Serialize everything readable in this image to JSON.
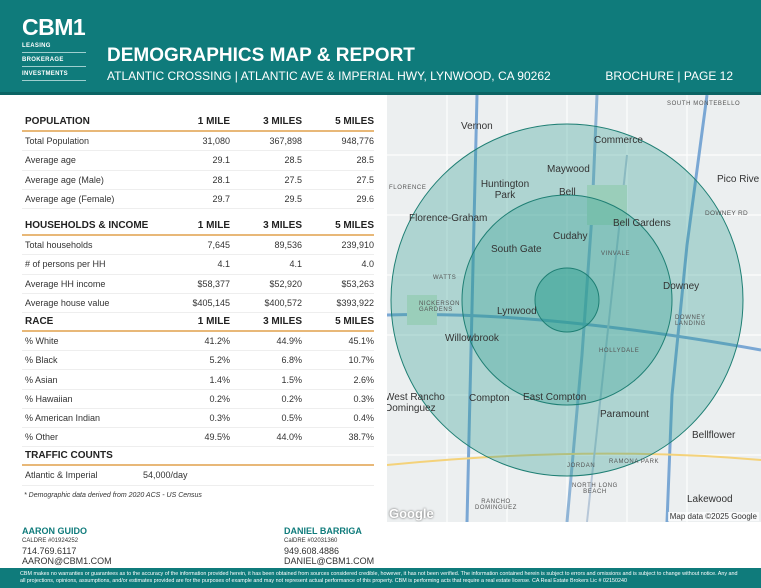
{
  "header": {
    "logo": "CBM1",
    "logo_lines": [
      "LEASING",
      "BROKERAGE",
      "INVESTMENTS"
    ],
    "title": "DEMOGRAPHICS MAP & REPORT",
    "subtitle": "ATLANTIC CROSSING | ATLANTIC AVE & IMPERIAL HWY, LYNWOOD, CA 90262",
    "page": "BROCHURE | PAGE 12"
  },
  "sections": [
    {
      "title": "POPULATION",
      "cols": [
        "1 MILE",
        "3 MILES",
        "5 MILES"
      ],
      "rows": [
        [
          "Total Population",
          "31,080",
          "367,898",
          "948,776"
        ],
        [
          "Average age",
          "29.1",
          "28.5",
          "28.5"
        ],
        [
          "Average age (Male)",
          "28.1",
          "27.5",
          "27.5"
        ],
        [
          "Average age (Female)",
          "29.7",
          "29.5",
          "29.6"
        ]
      ]
    },
    {
      "title": "HOUSEHOLDS & INCOME",
      "cols": [
        "1 MILE",
        "3 MILES",
        "5 MILES"
      ],
      "rows": [
        [
          "Total households",
          "7,645",
          "89,536",
          "239,910"
        ],
        [
          "# of persons per HH",
          "4.1",
          "4.1",
          "4.0"
        ],
        [
          "Average HH income",
          "$58,377",
          "$52,920",
          "$53,263"
        ],
        [
          "Average house value",
          "$405,145",
          "$400,572",
          "$393,922"
        ]
      ]
    },
    {
      "title": "RACE",
      "cols": [
        "1 MILE",
        "3 MILES",
        "5 MILES"
      ],
      "rows": [
        [
          "% White",
          "41.2%",
          "44.9%",
          "45.1%"
        ],
        [
          "% Black",
          "5.2%",
          "6.8%",
          "10.7%"
        ],
        [
          "% Asian",
          "1.4%",
          "1.5%",
          "2.6%"
        ],
        [
          "% Hawaiian",
          "0.2%",
          "0.2%",
          "0.3%"
        ],
        [
          "% American Indian",
          "0.3%",
          "0.5%",
          "0.4%"
        ],
        [
          "% Other",
          "49.5%",
          "44.0%",
          "38.7%"
        ]
      ]
    }
  ],
  "traffic": {
    "title": "TRAFFIC COUNTS",
    "label": "Atlantic & Imperial",
    "value": "54,000/day"
  },
  "note": "* Demographic data derived from 2020 ACS - US Census",
  "map": {
    "places": [
      "Vernon",
      "Commerce",
      "Maywood",
      "Pico Rive",
      "Huntington Park",
      "Bell",
      "Florence-Graham",
      "Bell Gardens",
      "Cudahy",
      "South Gate",
      "Downey",
      "Lynwood",
      "Willowbrook",
      "West Rancho Dominguez",
      "Compton",
      "East Compton",
      "Paramount",
      "Bellflower",
      "Lakewood"
    ],
    "small": [
      "SOUTH MONTEBELLO",
      "FLORENCE",
      "DOWNEY RD",
      "VINVALE",
      "WATTS",
      "NICKERSON GARDENS",
      "DOWNEY LANDING",
      "HOLLYDALE",
      "JORDAN",
      "RAMONA PARK",
      "NORTH LONG BEACH",
      "RANCHO DOMINGUEZ"
    ],
    "google": "Google",
    "attribution": "Map data ©2025 Google",
    "circle_color": "#2a9d8f"
  },
  "contacts": [
    {
      "name": "AARON GUIDO",
      "license": "CALDRE #01924252",
      "phone": "714.769.6117",
      "email": "AARON@CBM1.COM"
    },
    {
      "name": "DANIEL BARRIGA",
      "license": "CalDRE #02031360",
      "phone": "949.608.4886",
      "email": "DANIEL@CBM1.COM"
    }
  ],
  "disclaimer": "CBM makes no warranties or guarantees as to the accuracy of the information provided herein, it has been obtained from sources considered credible, however, it has not been verified. The information contained herein is subject to errors and omissions and is subject to change without notice. Any and all projections, opinions, assumptions, and/or estimates provided are for the purposes of example and may not represent actual performance of this property. CBM is performing acts that require a real estate license. CA Real Estate Brokers Lic # 02150240"
}
